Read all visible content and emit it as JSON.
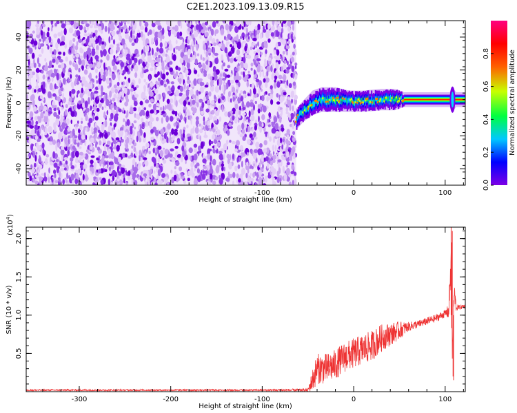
{
  "figure": {
    "title": "C2E1.2023.109.13.09.R15"
  },
  "chart_data": [
    {
      "type": "heatmap",
      "title": "C2E1.2023.109.13.09.R15",
      "xlabel": "Height of straight line (km)",
      "ylabel": "Frequency (Hz)",
      "xlim": [
        -358,
        122
      ],
      "ylim": [
        -50,
        50
      ],
      "xticks": [
        -300,
        -200,
        -100,
        0,
        100
      ],
      "yticks": [
        -40,
        -20,
        0,
        20,
        40
      ],
      "noise_region": {
        "x_range": [
          -358,
          -63
        ],
        "y_range": [
          -50,
          50
        ],
        "color": "#7d00e6"
      },
      "signal_band": [
        {
          "x": -63,
          "f_center": -10,
          "f_halfwidth": 5
        },
        {
          "x": -55,
          "f_center": -5,
          "f_halfwidth": 5
        },
        {
          "x": -45,
          "f_center": 0,
          "f_halfwidth": 6
        },
        {
          "x": -35,
          "f_center": 2,
          "f_halfwidth": 6
        },
        {
          "x": -20,
          "f_center": 2,
          "f_halfwidth": 6
        },
        {
          "x": -5,
          "f_center": 1,
          "f_halfwidth": 5
        },
        {
          "x": 10,
          "f_center": 1,
          "f_halfwidth": 5
        },
        {
          "x": 30,
          "f_center": 2,
          "f_halfwidth": 5
        },
        {
          "x": 45,
          "f_center": 2,
          "f_halfwidth": 5
        },
        {
          "x": 55,
          "f_center": 2,
          "f_halfwidth": 3
        },
        {
          "x": 105,
          "f_center": 2,
          "f_halfwidth": 3
        },
        {
          "x": 108,
          "f_center": 2,
          "f_halfwidth": 6
        },
        {
          "x": 112,
          "f_center": 2,
          "f_halfwidth": 3
        },
        {
          "x": 122,
          "f_center": 2,
          "f_halfwidth": 3
        }
      ],
      "colorbar": {
        "label": "Normalized spectral amplitude",
        "range": [
          0,
          1
        ],
        "ticks": [
          0.0,
          0.2,
          0.4,
          0.6,
          0.8
        ],
        "tick_labels": [
          "0.0",
          "0.2",
          "0.4",
          "0.6",
          "0.8"
        ],
        "colormap": [
          "#7d00e6",
          "#0000ff",
          "#00c8ff",
          "#00ff40",
          "#c8ff00",
          "#ff6000",
          "#ff0000",
          "#ff0080"
        ]
      }
    },
    {
      "type": "line",
      "xlabel": "Height of straight line (km)",
      "ylabel": "SNR (10 * v/v)",
      "y_multiplier": "(x10",
      "y_multiplier_exp": "4",
      "y_multiplier_close": ")",
      "xlim": [
        -358,
        122
      ],
      "ylim": [
        0,
        2.15
      ],
      "xticks": [
        -300,
        -200,
        -100,
        0,
        100
      ],
      "yticks": [
        0.5,
        1.0,
        1.5,
        2.0
      ],
      "ytick_labels": [
        "0.5",
        "1.0",
        "1.5",
        "2.0"
      ],
      "series": [
        {
          "color": "#ee3333",
          "x": [
            -358,
            -300,
            -200,
            -100,
            -50,
            -45,
            -40,
            -30,
            -20,
            -10,
            0,
            10,
            20,
            30,
            40,
            50,
            60,
            70,
            80,
            90,
            100,
            104,
            106,
            108,
            110,
            112,
            115,
            122
          ],
          "y": [
            0.02,
            0.02,
            0.02,
            0.02,
            0.02,
            0.15,
            0.3,
            0.3,
            0.35,
            0.45,
            0.5,
            0.55,
            0.6,
            0.7,
            0.75,
            0.8,
            0.85,
            0.88,
            0.92,
            0.96,
            1.02,
            1.05,
            1.7,
            0.5,
            1.3,
            1.1,
            1.1,
            1.12
          ],
          "noise_amplitude": [
            0.01,
            0.01,
            0.01,
            0.01,
            0.02,
            0.15,
            0.2,
            0.2,
            0.2,
            0.2,
            0.2,
            0.2,
            0.2,
            0.18,
            0.15,
            0.12,
            0.06,
            0.05,
            0.05,
            0.05,
            0.05,
            0.1,
            0.45,
            0.4,
            0.15,
            0.05,
            0.03,
            0.03
          ]
        }
      ]
    }
  ]
}
